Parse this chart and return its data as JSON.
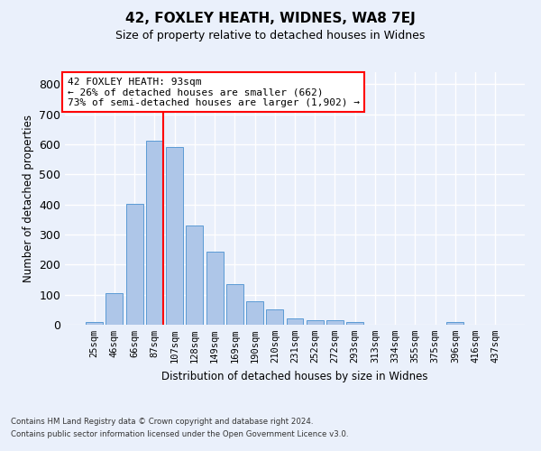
{
  "title": "42, FOXLEY HEATH, WIDNES, WA8 7EJ",
  "subtitle": "Size of property relative to detached houses in Widnes",
  "xlabel": "Distribution of detached houses by size in Widnes",
  "ylabel": "Number of detached properties",
  "footer1": "Contains HM Land Registry data © Crown copyright and database right 2024.",
  "footer2": "Contains public sector information licensed under the Open Government Licence v3.0.",
  "categories": [
    "25sqm",
    "46sqm",
    "66sqm",
    "87sqm",
    "107sqm",
    "128sqm",
    "149sqm",
    "169sqm",
    "190sqm",
    "210sqm",
    "231sqm",
    "252sqm",
    "272sqm",
    "293sqm",
    "313sqm",
    "334sqm",
    "355sqm",
    "375sqm",
    "396sqm",
    "416sqm",
    "437sqm"
  ],
  "values": [
    8,
    106,
    403,
    613,
    591,
    330,
    242,
    134,
    77,
    50,
    22,
    15,
    15,
    8,
    0,
    0,
    0,
    0,
    8,
    0,
    0
  ],
  "bar_color": "#aec6e8",
  "bar_edge_color": "#5b9bd5",
  "background_color": "#eaf0fb",
  "grid_color": "#ffffff",
  "vline_color": "red",
  "annotation_text": "42 FOXLEY HEATH: 93sqm\n← 26% of detached houses are smaller (662)\n73% of semi-detached houses are larger (1,902) →",
  "annotation_box_color": "white",
  "annotation_box_edge": "red",
  "ylim": [
    0,
    840
  ],
  "yticks": [
    0,
    100,
    200,
    300,
    400,
    500,
    600,
    700,
    800
  ]
}
